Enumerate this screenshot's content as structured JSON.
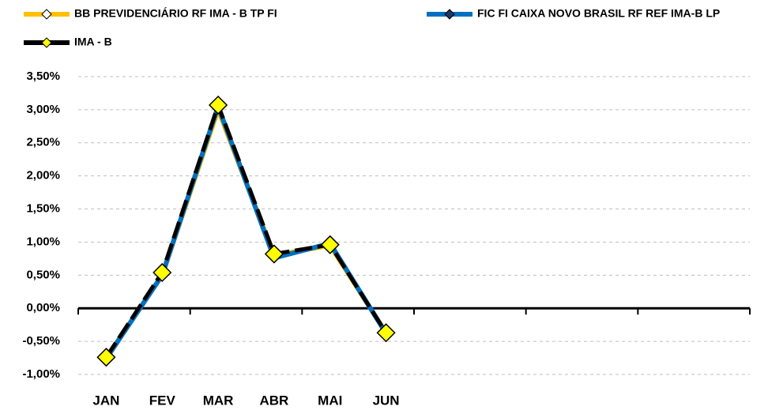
{
  "chart_data": {
    "type": "line",
    "categories": [
      "JAN",
      "FEV",
      "MAR",
      "ABR",
      "MAI",
      "JUN",
      null,
      null,
      null,
      null,
      null,
      null
    ],
    "series": [
      {
        "name": "BB PREVIDENCIÁRIO RF IMA - B TP FI",
        "color": "#FFC000",
        "marker_color": "#FFFFFF",
        "values": [
          -0.75,
          0.5,
          3.0,
          0.8,
          0.95,
          -0.37,
          null,
          null,
          null,
          null,
          null,
          null
        ]
      },
      {
        "name": "FIC FI CAIXA NOVO BRASIL RF REF IMA-B LP",
        "color": "#0070C0",
        "marker_color": "#1F3864",
        "values": [
          -0.76,
          0.5,
          3.05,
          0.76,
          0.98,
          -0.38,
          null,
          null,
          null,
          null,
          null,
          null
        ]
      },
      {
        "name": "IMA - B",
        "color": "#000000",
        "marker_color": "#FFFF00",
        "dashed": true,
        "markers": true,
        "values": [
          -0.74,
          0.54,
          3.07,
          0.82,
          0.96,
          -0.37,
          null,
          null,
          null,
          null,
          null,
          null
        ]
      }
    ],
    "ylim": [
      -1,
      3.5
    ],
    "yticks": [
      {
        "value": -1,
        "label": "-1,00%"
      },
      {
        "value": -0.5,
        "label": "-0,50%"
      },
      {
        "value": 0,
        "label": "0,00%"
      },
      {
        "value": 0.5,
        "label": "0,50%"
      },
      {
        "value": 1,
        "label": "1,00%"
      },
      {
        "value": 1.5,
        "label": "1,50%"
      },
      {
        "value": 2,
        "label": "2,00%"
      },
      {
        "value": 2.5,
        "label": "2,50%"
      },
      {
        "value": 3,
        "label": "3,00%"
      },
      {
        "value": 3.5,
        "label": "3,50%"
      }
    ],
    "grid": true,
    "legend": "top"
  }
}
